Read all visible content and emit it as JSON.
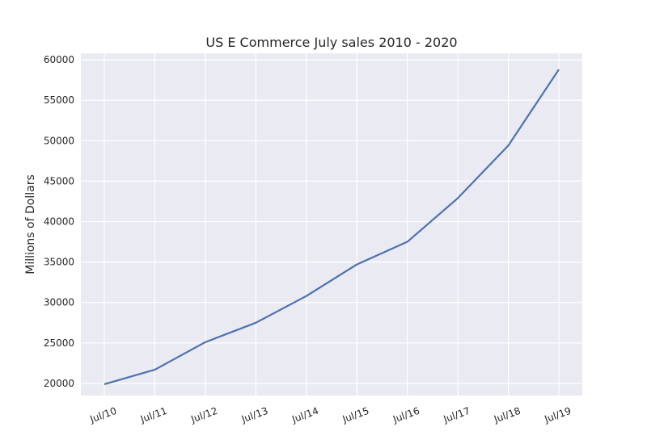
{
  "chart_data": {
    "type": "line",
    "title": "US E Commerce July sales 2010 - 2020",
    "xlabel": "",
    "ylabel": "Millions of Dollars",
    "categories": [
      "Jul/10",
      "Jul/11",
      "Jul/12",
      "Jul/13",
      "Jul/14",
      "Jul/15",
      "Jul/16",
      "Jul/17",
      "Jul/18",
      "Jul/19"
    ],
    "series": [
      {
        "values": [
          19900,
          21700,
          25100,
          27500,
          30800,
          34700,
          37500,
          42900,
          49400,
          58800
        ]
      }
    ],
    "ylim": [
      18500,
      60800
    ],
    "yticks": [
      20000,
      25000,
      30000,
      35000,
      40000,
      45000,
      50000,
      55000,
      60000
    ],
    "grid": true,
    "colors": {
      "background": "#eaeaf2",
      "grid": "#ffffff",
      "line": "#4c72b0",
      "text": "#262626"
    }
  }
}
